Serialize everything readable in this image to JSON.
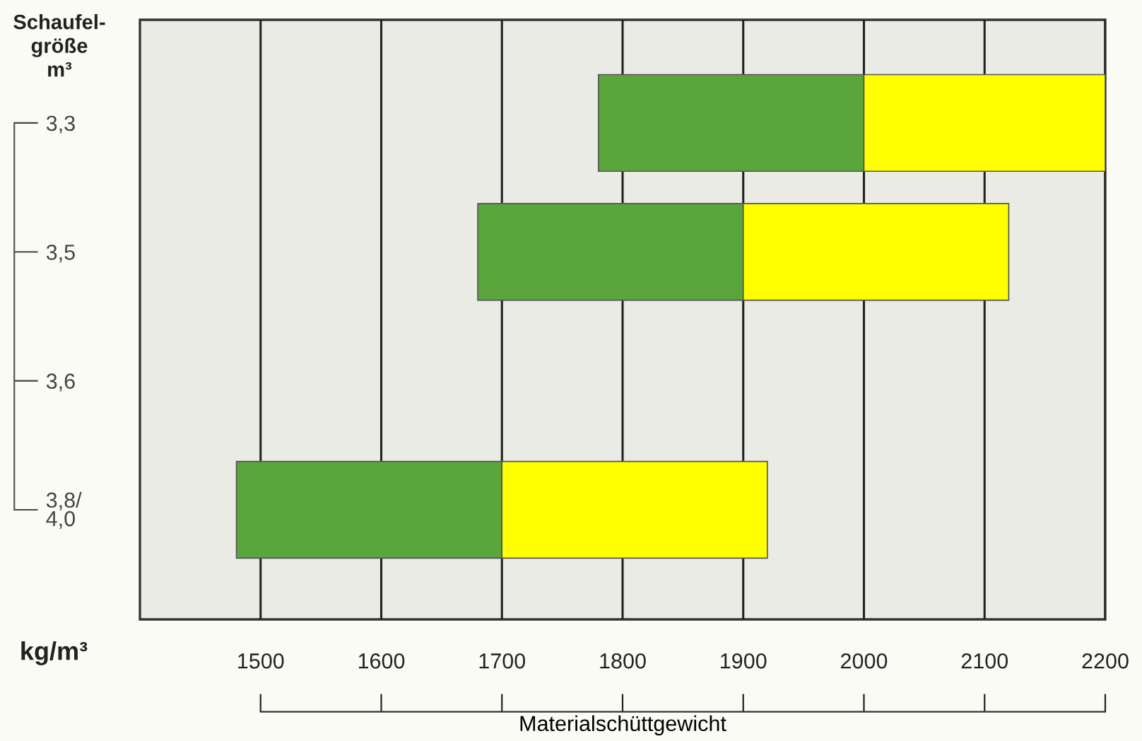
{
  "chart_data": {
    "type": "bar",
    "orientation": "horizontal",
    "categories": [
      "3,3",
      "3,5",
      "3,6",
      "3,8/\n4,0"
    ],
    "series": [
      {
        "color": "#5aa63c",
        "base": [
          1780,
          1680,
          null,
          1480
        ],
        "values": [
          220,
          220,
          null,
          220
        ]
      },
      {
        "color": "#ffff00",
        "base": [
          2000,
          1900,
          null,
          1700
        ],
        "values": [
          200,
          220,
          null,
          220
        ]
      }
    ],
    "xlim": [
      1400,
      2200
    ],
    "xticks": [
      1500,
      1600,
      1700,
      1800,
      1900,
      2000,
      2100,
      2200
    ],
    "ylabel": "Schaufel-\ngröße\nm³",
    "xlabel": "Materialschüttgewicht",
    "annotations": [
      "kg/m³"
    ],
    "grid": "x"
  }
}
